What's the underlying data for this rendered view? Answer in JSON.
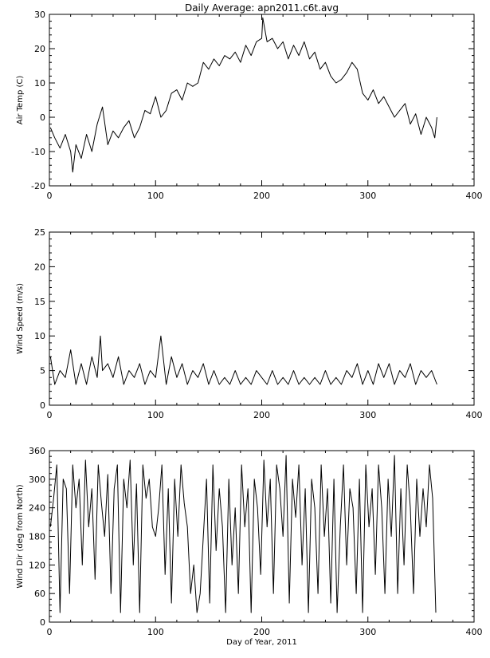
{
  "figure": {
    "title": "Daily Average: apn2011.c6t.avg"
  },
  "chart_data": [
    {
      "type": "line",
      "title": "Daily Average: apn2011.c6t.avg",
      "xlabel": "",
      "ylabel": "Air Temp (C)",
      "xlim": [
        0,
        400
      ],
      "ylim": [
        -20,
        30
      ],
      "xticks": [
        0,
        100,
        200,
        300,
        400
      ],
      "yticks": [
        -20,
        -10,
        0,
        10,
        20,
        30
      ],
      "grid": false,
      "series": [
        {
          "x": [
            1,
            5,
            10,
            15,
            20,
            22,
            25,
            30,
            35,
            40,
            45,
            50,
            55,
            60,
            65,
            70,
            75,
            80,
            85,
            90,
            95,
            100,
            105,
            110,
            115,
            120,
            125,
            130,
            135,
            140,
            145,
            150,
            155,
            160,
            165,
            170,
            175,
            180,
            185,
            190,
            195,
            200,
            201,
            205,
            210,
            215,
            220,
            225,
            230,
            235,
            240,
            245,
            250,
            255,
            260,
            265,
            270,
            275,
            280,
            285,
            290,
            295,
            300,
            305,
            310,
            315,
            320,
            325,
            330,
            335,
            340,
            345,
            350,
            355,
            360,
            363,
            365
          ],
          "y": [
            -3,
            -6,
            -9,
            -5,
            -10,
            -16,
            -8,
            -12,
            -5,
            -10,
            -2,
            3,
            -8,
            -4,
            -6,
            -3,
            -1,
            -6,
            -3,
            2,
            1,
            6,
            0,
            2,
            7,
            8,
            5,
            10,
            9,
            10,
            16,
            14,
            17,
            15,
            18,
            17,
            19,
            16,
            21,
            18,
            22,
            23,
            29,
            22,
            23,
            20,
            22,
            17,
            21,
            18,
            22,
            17,
            19,
            14,
            16,
            12,
            10,
            11,
            13,
            16,
            14,
            7,
            5,
            8,
            4,
            6,
            3,
            0,
            2,
            4,
            -2,
            1,
            -5,
            0,
            -3,
            -6,
            0
          ]
        }
      ]
    },
    {
      "type": "line",
      "xlabel": "",
      "ylabel": "Wind Speed (m/s)",
      "xlim": [
        0,
        400
      ],
      "ylim": [
        0,
        25
      ],
      "xticks": [
        0,
        100,
        200,
        300,
        400
      ],
      "yticks": [
        0,
        5,
        10,
        15,
        20,
        25
      ],
      "grid": false,
      "series": [
        {
          "x": [
            1,
            5,
            10,
            15,
            20,
            25,
            30,
            35,
            40,
            45,
            48,
            50,
            55,
            60,
            65,
            70,
            75,
            80,
            85,
            90,
            95,
            100,
            105,
            110,
            115,
            120,
            125,
            130,
            135,
            140,
            145,
            150,
            155,
            160,
            165,
            170,
            175,
            180,
            185,
            190,
            195,
            200,
            205,
            210,
            215,
            220,
            225,
            230,
            235,
            240,
            245,
            250,
            255,
            260,
            265,
            270,
            275,
            280,
            285,
            290,
            295,
            300,
            305,
            310,
            315,
            320,
            325,
            330,
            335,
            340,
            345,
            350,
            355,
            360,
            365
          ],
          "y": [
            7,
            3,
            5,
            4,
            8,
            3,
            6,
            3,
            7,
            4,
            10,
            5,
            6,
            4,
            7,
            3,
            5,
            4,
            6,
            3,
            5,
            4,
            10,
            3,
            7,
            4,
            6,
            3,
            5,
            4,
            6,
            3,
            5,
            3,
            4,
            3,
            5,
            3,
            4,
            3,
            5,
            4,
            3,
            5,
            3,
            4,
            3,
            5,
            3,
            4,
            3,
            4,
            3,
            5,
            3,
            4,
            3,
            5,
            4,
            6,
            3,
            5,
            3,
            6,
            4,
            6,
            3,
            5,
            4,
            6,
            3,
            5,
            4,
            5,
            3
          ]
        }
      ]
    },
    {
      "type": "line",
      "xlabel": "Day of Year, 2011",
      "ylabel": "Wind Dir (deg from North)",
      "xlim": [
        0,
        400
      ],
      "ylim": [
        0,
        360
      ],
      "xticks": [
        0,
        100,
        200,
        300,
        400
      ],
      "yticks": [
        0,
        60,
        120,
        180,
        240,
        300,
        360
      ],
      "grid": false,
      "series": [
        {
          "x": [
            1,
            4,
            7,
            10,
            13,
            16,
            19,
            22,
            25,
            28,
            31,
            34,
            37,
            40,
            43,
            46,
            49,
            52,
            55,
            58,
            61,
            64,
            67,
            70,
            73,
            76,
            79,
            82,
            85,
            88,
            91,
            94,
            97,
            100,
            103,
            106,
            109,
            112,
            115,
            118,
            121,
            124,
            127,
            130,
            133,
            136,
            139,
            142,
            145,
            148,
            151,
            154,
            157,
            160,
            163,
            166,
            169,
            172,
            175,
            178,
            181,
            184,
            187,
            190,
            193,
            196,
            199,
            202,
            205,
            208,
            211,
            214,
            217,
            220,
            223,
            226,
            229,
            232,
            235,
            238,
            241,
            244,
            247,
            250,
            253,
            256,
            259,
            262,
            265,
            268,
            271,
            274,
            277,
            280,
            283,
            286,
            289,
            292,
            295,
            298,
            301,
            304,
            307,
            310,
            313,
            316,
            319,
            322,
            325,
            328,
            331,
            334,
            337,
            340,
            343,
            346,
            349,
            352,
            355,
            358,
            361,
            364
          ],
          "y": [
            200,
            260,
            330,
            20,
            300,
            280,
            60,
            330,
            240,
            300,
            120,
            340,
            200,
            280,
            90,
            330,
            250,
            180,
            310,
            60,
            280,
            330,
            20,
            300,
            240,
            340,
            120,
            290,
            20,
            330,
            260,
            300,
            200,
            180,
            240,
            330,
            100,
            280,
            40,
            300,
            180,
            330,
            250,
            200,
            60,
            120,
            20,
            60,
            180,
            300,
            40,
            330,
            150,
            280,
            200,
            20,
            300,
            120,
            240,
            60,
            330,
            200,
            280,
            20,
            300,
            240,
            100,
            340,
            200,
            300,
            60,
            330,
            280,
            180,
            350,
            40,
            300,
            220,
            330,
            120,
            280,
            20,
            300,
            240,
            60,
            330,
            180,
            280,
            40,
            300,
            20,
            200,
            330,
            120,
            280,
            240,
            60,
            300,
            20,
            330,
            200,
            280,
            100,
            330,
            240,
            60,
            300,
            180,
            350,
            60,
            280,
            120,
            330,
            240,
            60,
            300,
            180,
            280,
            200,
            330,
            260,
            20
          ]
        }
      ]
    }
  ]
}
